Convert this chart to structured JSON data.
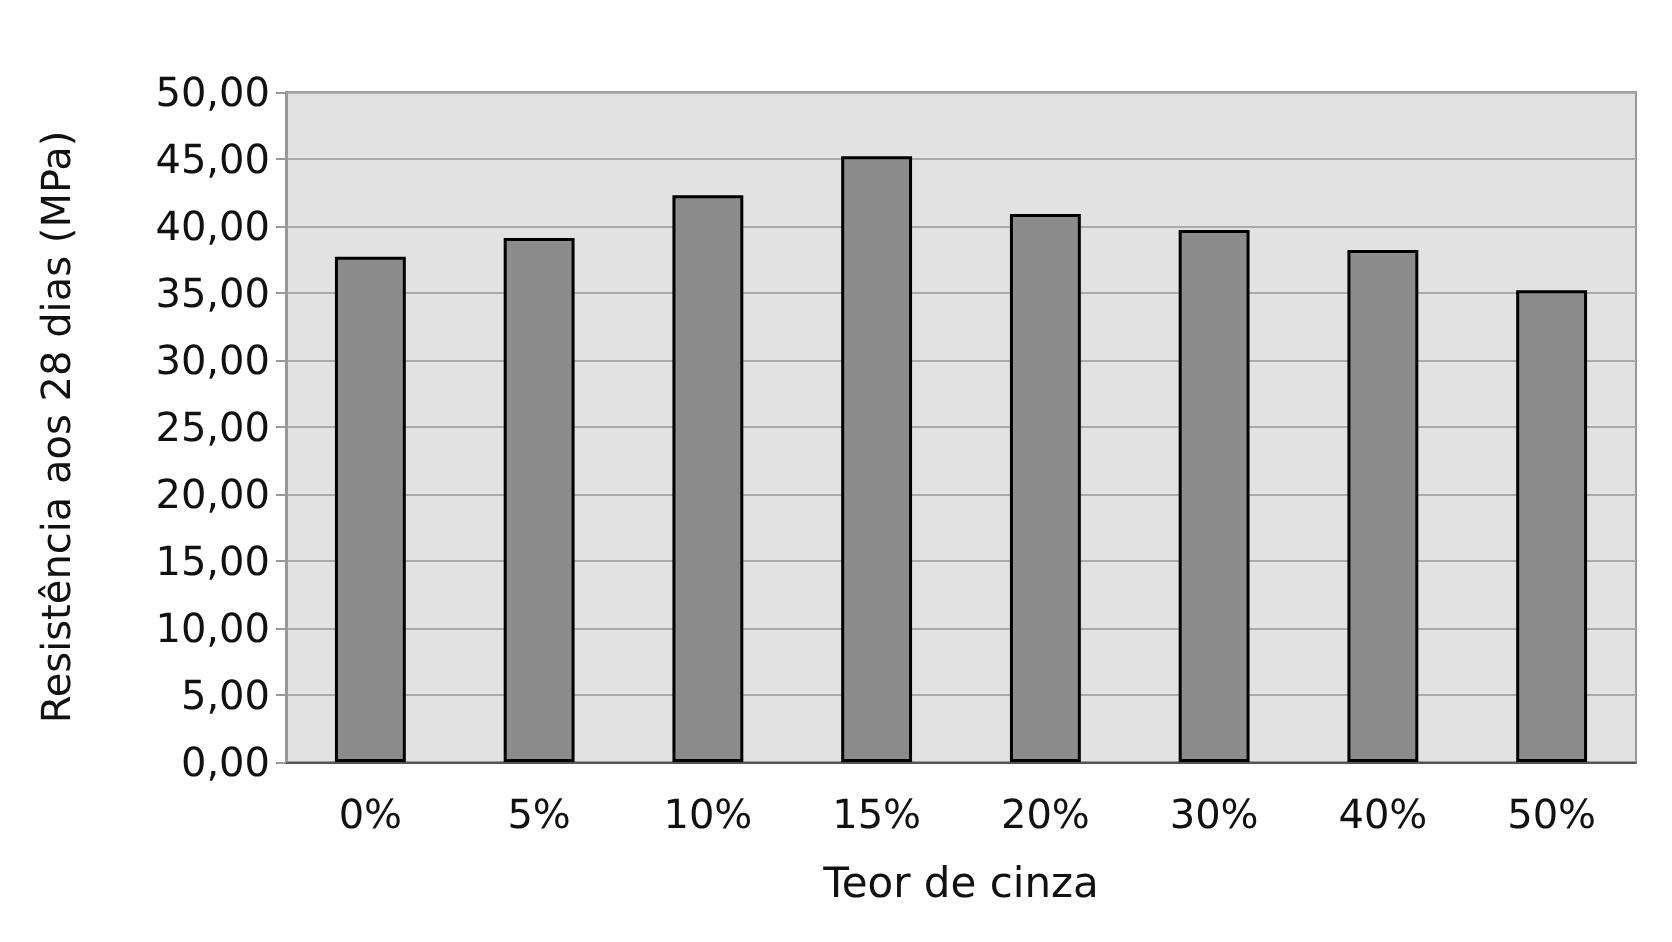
{
  "chart_data": {
    "type": "bar",
    "xlabel": "Teor de cinza",
    "ylabel": "Resistência aos 28 dias (MPa)",
    "categories": [
      "0%",
      "5%",
      "10%",
      "15%",
      "20%",
      "30%",
      "40%",
      "50%"
    ],
    "values": [
      37.7,
      39.1,
      42.3,
      45.2,
      40.9,
      39.7,
      38.2,
      35.2
    ],
    "color": "#8c8c8c",
    "ylim": [
      0,
      50
    ],
    "yticks": [
      {
        "value": 0,
        "label": "0,00"
      },
      {
        "value": 5,
        "label": "5,00"
      },
      {
        "value": 10,
        "label": "10,00"
      },
      {
        "value": 15,
        "label": "15,00"
      },
      {
        "value": 20,
        "label": "20,00"
      },
      {
        "value": 25,
        "label": "25,00"
      },
      {
        "value": 30,
        "label": "30,00"
      },
      {
        "value": 35,
        "label": "35,00"
      },
      {
        "value": 40,
        "label": "40,00"
      },
      {
        "value": 45,
        "label": "45,00"
      },
      {
        "value": 50,
        "label": "50,00"
      }
    ],
    "grid": "y"
  }
}
